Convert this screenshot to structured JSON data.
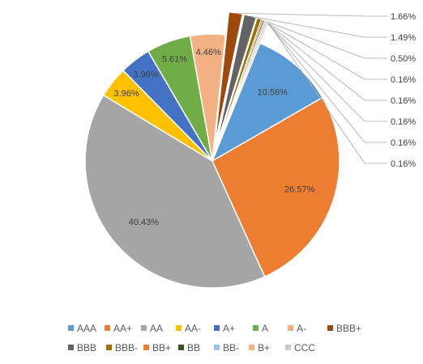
{
  "chart_data": {
    "type": "pie",
    "title": "",
    "slices": [
      {
        "label": "AAA",
        "value": 10.56,
        "display": "10.56%",
        "color": "#5B9BD5"
      },
      {
        "label": "AA+",
        "value": 26.57,
        "display": "26.57%",
        "color": "#ED7D31"
      },
      {
        "label": "AA",
        "value": 40.43,
        "display": "40.43%",
        "color": "#A5A5A5"
      },
      {
        "label": "AA-",
        "value": 3.96,
        "display": "3.96%",
        "color": "#FFC000"
      },
      {
        "label": "A+",
        "value": 3.96,
        "display": "3.96%",
        "color": "#4472C4"
      },
      {
        "label": "A",
        "value": 5.61,
        "display": "5.61%",
        "color": "#70AD47"
      },
      {
        "label": "A-",
        "value": 4.46,
        "display": "4.46%",
        "color": "#F4B183"
      },
      {
        "label": "BBB+",
        "value": 1.66,
        "display": "1.66%",
        "color": "#9E480E"
      },
      {
        "label": "BBB",
        "value": 1.49,
        "display": "1.49%",
        "color": "#636363"
      },
      {
        "label": "BBB-",
        "value": 0.5,
        "display": "0.50%",
        "color": "#997300"
      },
      {
        "label": "BB+",
        "value": 0.16,
        "display": "0.16%",
        "color": "#ED7D31"
      },
      {
        "label": "BB",
        "value": 0.16,
        "display": "0.16%",
        "color": "#375623"
      },
      {
        "label": "BB-",
        "value": 0.16,
        "display": "0.16%",
        "color": "#9DC3E6"
      },
      {
        "label": "B+",
        "value": 0.16,
        "display": "0.16%",
        "color": "#F4B183"
      },
      {
        "label": "CCC",
        "value": 0.16,
        "display": "0.16%",
        "color": "#C9C9C9"
      }
    ],
    "legend_position": "bottom"
  }
}
